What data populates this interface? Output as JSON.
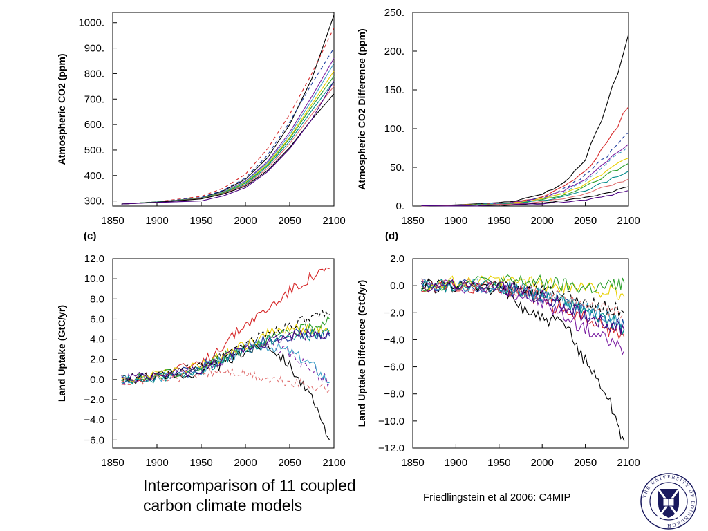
{
  "caption": {
    "line1": "Intercomparison of 11 coupled",
    "line2": "carbon climate models"
  },
  "credit": "Friedlingstein et al 2006: C4MIP",
  "logo": {
    "text": "THE UNIVERSITY OF EDINBURGH",
    "icon": "university-of-edinburgh-crest-icon",
    "colors": {
      "ring": "#1a1a5e",
      "shield": "#1a1a5e"
    }
  },
  "series_colors": [
    "#000000",
    "#d62728",
    "#1f3f9f",
    "#7b1fa2",
    "#3fa0c8",
    "#e8d000",
    "#2ca02c",
    "#008b8b",
    "#e07070",
    "#000000",
    "#4b0082"
  ],
  "chart_data": [
    {
      "panel": "a",
      "type": "line",
      "panel_label": "",
      "ylabel": "Atmospheric CO2 (ppm)",
      "xlim": [
        1850,
        2100
      ],
      "ylim": [
        280,
        1040
      ],
      "xticks": [
        "1850",
        "1900",
        "1950",
        "2000",
        "2050",
        "2100"
      ],
      "yticks": [
        "300.",
        "400.",
        "500.",
        "600.",
        "700.",
        "800.",
        "900.",
        "1000."
      ],
      "ytick_values": [
        300,
        400,
        500,
        600,
        700,
        800,
        900,
        1000
      ],
      "x": [
        1860,
        1900,
        1950,
        1975,
        2000,
        2025,
        2050,
        2075,
        2100
      ],
      "series": [
        {
          "values": [
            288,
            296,
            312,
            340,
            385,
            470,
            600,
            780,
            1030
          ]
        },
        {
          "dashed": true,
          "values": [
            288,
            297,
            318,
            350,
            405,
            505,
            640,
            800,
            980
          ]
        },
        {
          "dashed": true,
          "values": [
            288,
            296,
            314,
            342,
            390,
            480,
            610,
            760,
            900
          ]
        },
        {
          "values": [
            288,
            296,
            311,
            336,
            378,
            455,
            570,
            710,
            860
          ]
        },
        {
          "values": [
            288,
            296,
            311,
            335,
            376,
            450,
            560,
            695,
            840
          ]
        },
        {
          "values": [
            288,
            296,
            310,
            333,
            372,
            445,
            550,
            680,
            810
          ]
        },
        {
          "values": [
            288,
            296,
            310,
            332,
            370,
            440,
            545,
            670,
            790
          ]
        },
        {
          "values": [
            288,
            296,
            309,
            330,
            365,
            435,
            535,
            655,
            770
          ]
        },
        {
          "values": [
            288,
            295,
            309,
            329,
            362,
            428,
            525,
            640,
            750
          ]
        },
        {
          "values": [
            288,
            295,
            308,
            327,
            358,
            420,
            510,
            620,
            720
          ]
        },
        {
          "values": [
            288,
            294,
            300,
            320,
            352,
            415,
            505,
            620,
            770
          ]
        }
      ]
    },
    {
      "panel": "b",
      "type": "line",
      "panel_label": "",
      "ylabel": "Atmospheric CO2 Difference (ppm)",
      "xlim": [
        1850,
        2100
      ],
      "ylim": [
        0,
        250
      ],
      "xticks": [
        "1850",
        "1900",
        "1950",
        "2000",
        "2050",
        "2100"
      ],
      "yticks": [
        "0.",
        "50.",
        "100.",
        "150.",
        "200.",
        "250."
      ],
      "ytick_values": [
        0,
        50,
        100,
        150,
        200,
        250
      ],
      "x": [
        1860,
        1900,
        1950,
        1975,
        2000,
        2025,
        2050,
        2075,
        2100
      ],
      "series": [
        {
          "values": [
            0,
            2,
            4,
            8,
            15,
            30,
            60,
            130,
            222
          ]
        },
        {
          "values": [
            0,
            1,
            3,
            6,
            12,
            25,
            45,
            80,
            128
          ]
        },
        {
          "dashed": true,
          "values": [
            0,
            1,
            3,
            6,
            11,
            22,
            40,
            65,
            95
          ]
        },
        {
          "values": [
            0,
            1,
            3,
            6,
            10,
            20,
            35,
            58,
            80
          ]
        },
        {
          "dashed": true,
          "values": [
            0,
            1,
            3,
            5,
            9,
            18,
            32,
            55,
            78
          ]
        },
        {
          "values": [
            0,
            1,
            2,
            5,
            9,
            16,
            28,
            45,
            62
          ]
        },
        {
          "values": [
            0,
            1,
            2,
            4,
            8,
            14,
            25,
            40,
            55
          ]
        },
        {
          "values": [
            0,
            1,
            2,
            4,
            7,
            12,
            20,
            32,
            45
          ]
        },
        {
          "values": [
            0,
            1,
            2,
            3,
            6,
            10,
            16,
            26,
            35
          ]
        },
        {
          "values": [
            0,
            0,
            1,
            2,
            4,
            7,
            11,
            17,
            25
          ]
        },
        {
          "values": [
            0,
            0,
            1,
            2,
            3,
            5,
            8,
            13,
            20
          ]
        }
      ]
    },
    {
      "panel": "c",
      "type": "line",
      "panel_label": "(c)",
      "ylabel": "Land Uptake (GtC/yr)",
      "xlim": [
        1850,
        2100
      ],
      "ylim": [
        -6.8,
        12
      ],
      "xticks": [
        "1850",
        "1900",
        "1950",
        "2000",
        "2050",
        "2100"
      ],
      "yticks": [
        "−6.0",
        "−4.0",
        "−2.0",
        "0.0",
        "2.0",
        "4.0",
        "6.0",
        "8.0",
        "10.0",
        "12.0"
      ],
      "ytick_values": [
        -6,
        -4,
        -2,
        0,
        2,
        4,
        6,
        8,
        10,
        12
      ],
      "x": [
        1860,
        1900,
        1950,
        1975,
        2000,
        2025,
        2050,
        2075,
        2095
      ],
      "series": [
        {
          "values": [
            0,
            0.2,
            0.8,
            1.5,
            2.8,
            3.6,
            1.5,
            -2.0,
            -6.0
          ]
        },
        {
          "values": [
            0,
            0.4,
            1.5,
            3.5,
            5.5,
            7.0,
            8.8,
            10.2,
            11.0
          ]
        },
        {
          "values": [
            0,
            0.3,
            1.2,
            2.5,
            3.3,
            4.0,
            4.4,
            4.6,
            4.3
          ]
        },
        {
          "dashed": true,
          "values": [
            0,
            0.2,
            0.8,
            1.8,
            3.0,
            3.6,
            2.5,
            1.0,
            -0.3
          ]
        },
        {
          "values": [
            0,
            0.2,
            1.0,
            2.0,
            3.0,
            3.4,
            2.8,
            1.5,
            -0.3
          ]
        },
        {
          "values": [
            0,
            0.5,
            1.3,
            2.3,
            3.5,
            4.5,
            5.0,
            5.0,
            4.8
          ]
        },
        {
          "values": [
            0,
            0.3,
            1.2,
            2.2,
            3.2,
            4.0,
            4.6,
            5.2,
            6.0
          ]
        },
        {
          "values": [
            0,
            0.2,
            1.0,
            2.0,
            3.0,
            3.8,
            4.2,
            4.4,
            4.5
          ]
        },
        {
          "dashed": true,
          "values": [
            0,
            0.1,
            0.5,
            0.8,
            0.5,
            0.0,
            -0.3,
            -0.6,
            -1.0
          ]
        },
        {
          "dashed": true,
          "values": [
            0,
            0.3,
            1.3,
            2.5,
            3.6,
            4.6,
            5.4,
            6.0,
            6.5
          ]
        },
        {
          "values": [
            0,
            0.3,
            1.0,
            2.0,
            3.1,
            3.8,
            4.3,
            4.5,
            4.5
          ]
        }
      ]
    },
    {
      "panel": "d",
      "type": "line",
      "panel_label": "(d)",
      "ylabel": "Land Uptake Difference (GtC/yr)",
      "xlim": [
        1850,
        2100
      ],
      "ylim": [
        -12,
        2
      ],
      "xticks": [
        "1850",
        "1900",
        "1950",
        "2000",
        "2050",
        "2100"
      ],
      "yticks": [
        "−12.0",
        "−10.0",
        "−8.0",
        "−6.0",
        "−4.0",
        "−2.0",
        "0.0",
        "2.0"
      ],
      "ytick_values": [
        -12,
        -10,
        -8,
        -6,
        -4,
        -2,
        0,
        2
      ],
      "x": [
        1860,
        1900,
        1950,
        1975,
        2000,
        2025,
        2050,
        2075,
        2095
      ],
      "series": [
        {
          "values": [
            0,
            0,
            -0.2,
            -1.5,
            -2.5,
            -2.8,
            -5.5,
            -8.0,
            -11.5
          ]
        },
        {
          "values": [
            0,
            0,
            -0.1,
            -0.5,
            -1.0,
            -1.8,
            -2.5,
            -3.2,
            -3.8
          ]
        },
        {
          "values": [
            0,
            0,
            -0.1,
            -0.4,
            -0.8,
            -1.4,
            -2.0,
            -2.6,
            -3.0
          ]
        },
        {
          "values": [
            0,
            0,
            -0.2,
            -0.6,
            -1.3,
            -2.2,
            -3.2,
            -4.0,
            -4.8
          ]
        },
        {
          "values": [
            0,
            0,
            -0.1,
            -0.3,
            -0.6,
            -1.0,
            -1.6,
            -2.2,
            -2.6
          ]
        },
        {
          "values": [
            0,
            0.2,
            0.2,
            0.3,
            0.1,
            0.0,
            -0.2,
            -0.4,
            -0.8
          ]
        },
        {
          "values": [
            0,
            0.2,
            0.3,
            0.3,
            0.2,
            0.0,
            -0.2,
            -0.1,
            0.2
          ]
        },
        {
          "values": [
            0,
            0,
            -0.1,
            -0.3,
            -0.7,
            -1.2,
            -1.8,
            -2.4,
            -3.2
          ]
        },
        {
          "dashed": true,
          "values": [
            0,
            0,
            -0.1,
            -0.3,
            -0.6,
            -1.0,
            -1.5,
            -1.7,
            -2.0
          ]
        },
        {
          "dashed": true,
          "values": [
            0,
            0,
            0,
            -0.2,
            -0.4,
            -0.8,
            -1.2,
            -1.6,
            -2.0
          ]
        },
        {
          "values": [
            0,
            0,
            -0.1,
            -0.4,
            -0.9,
            -1.5,
            -2.2,
            -2.8,
            -3.3
          ]
        }
      ]
    }
  ]
}
